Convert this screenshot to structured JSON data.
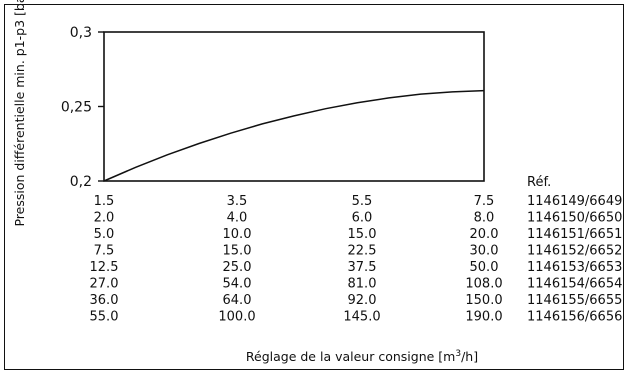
{
  "chart_data": {
    "type": "line",
    "ylabel": "Pression différentielle min. p1-p3 [bar]",
    "xlabel_prefix": "Réglage de la valeur consigne [m",
    "xlabel_sup": "3",
    "xlabel_suffix": "/h]",
    "y_ticks": [
      "0,2",
      "0,25",
      "0,3"
    ],
    "ylim": [
      0.2,
      0.3
    ],
    "xlim": [
      1.5,
      7.5
    ],
    "grid": false,
    "series": [
      {
        "x": [
          1.5,
          2.0,
          2.5,
          3.0,
          3.5,
          4.0,
          4.5,
          5.0,
          5.5,
          6.0,
          6.5,
          7.0,
          7.5
        ],
        "y": [
          0.2,
          0.2092,
          0.2176,
          0.2252,
          0.2321,
          0.2383,
          0.2437,
          0.2485,
          0.2525,
          0.2558,
          0.2583,
          0.2598,
          0.2607
        ]
      }
    ],
    "ref_header": "Réf.",
    "rows": [
      {
        "values": [
          "1.5",
          "3.5",
          "5.5",
          "7.5"
        ],
        "ref": "1146149/6649"
      },
      {
        "values": [
          "2.0",
          "4.0",
          "6.0",
          "8.0"
        ],
        "ref": "1146150/6650"
      },
      {
        "values": [
          "5.0",
          "10.0",
          "15.0",
          "20.0"
        ],
        "ref": "1146151/6651"
      },
      {
        "values": [
          "7.5",
          "15.0",
          "22.5",
          "30.0"
        ],
        "ref": "1146152/6652"
      },
      {
        "values": [
          "12.5",
          "25.0",
          "37.5",
          "50.0"
        ],
        "ref": "1146153/6653"
      },
      {
        "values": [
          "27.0",
          "54.0",
          "81.0",
          "108.0"
        ],
        "ref": "1146154/6654"
      },
      {
        "values": [
          "36.0",
          "64.0",
          "92.0",
          "150.0"
        ],
        "ref": "1146155/6655"
      },
      {
        "values": [
          "55.0",
          "100.0",
          "145.0",
          "190.0"
        ],
        "ref": "1146156/6656"
      }
    ]
  }
}
